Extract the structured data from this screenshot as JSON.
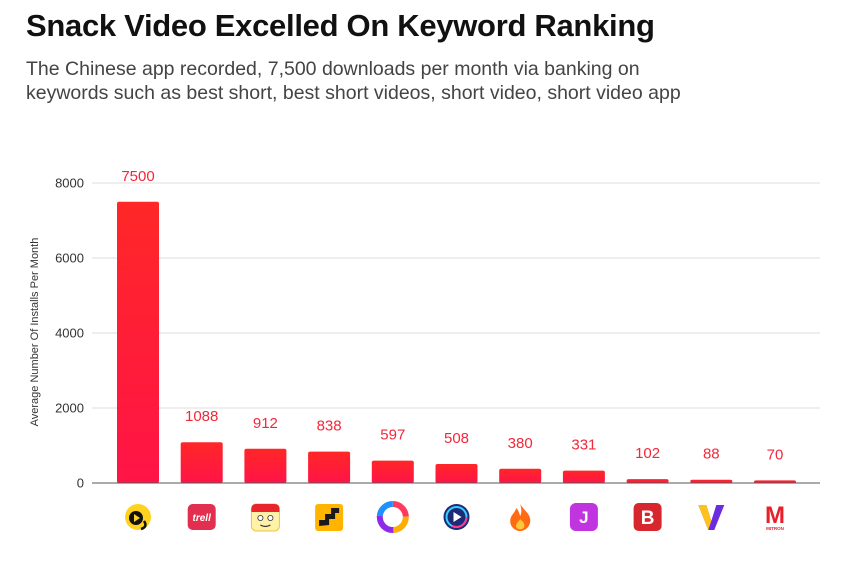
{
  "header": {
    "title": "Snack Video Excelled On Keyword Ranking",
    "subtitle_line1": "The Chinese app recorded, 7,500 downloads per month via banking on",
    "subtitle_line2": "keywords such as best short, best short videos, short video, short video app"
  },
  "colors": {
    "bar_top": "#ff2727",
    "bar_bottom": "#ff1447",
    "label": "#f2283a",
    "grid": "#dddddd"
  },
  "chart_data": {
    "type": "bar",
    "title": "Snack Video Excelled On Keyword Ranking",
    "xlabel": "",
    "ylabel": "Average Number Of Installs Per Month",
    "ylim": [
      0,
      8000
    ],
    "yticks": [
      0,
      2000,
      4000,
      6000,
      8000
    ],
    "grid": true,
    "categories": [
      "snack-video-icon",
      "trell-icon",
      "face-app-icon",
      "stairs-app-icon",
      "ring-app-icon",
      "play-app-icon",
      "flame-app-icon",
      "j-app-icon",
      "b-app-icon",
      "v-app-icon",
      "m-app-icon"
    ],
    "values": [
      7500,
      1088,
      912,
      838,
      597,
      508,
      380,
      331,
      102,
      88,
      70
    ],
    "icon_texts": {
      "trell": "trell",
      "j": "J",
      "b": "B",
      "m": "M",
      "m_small": "MITRON"
    }
  }
}
